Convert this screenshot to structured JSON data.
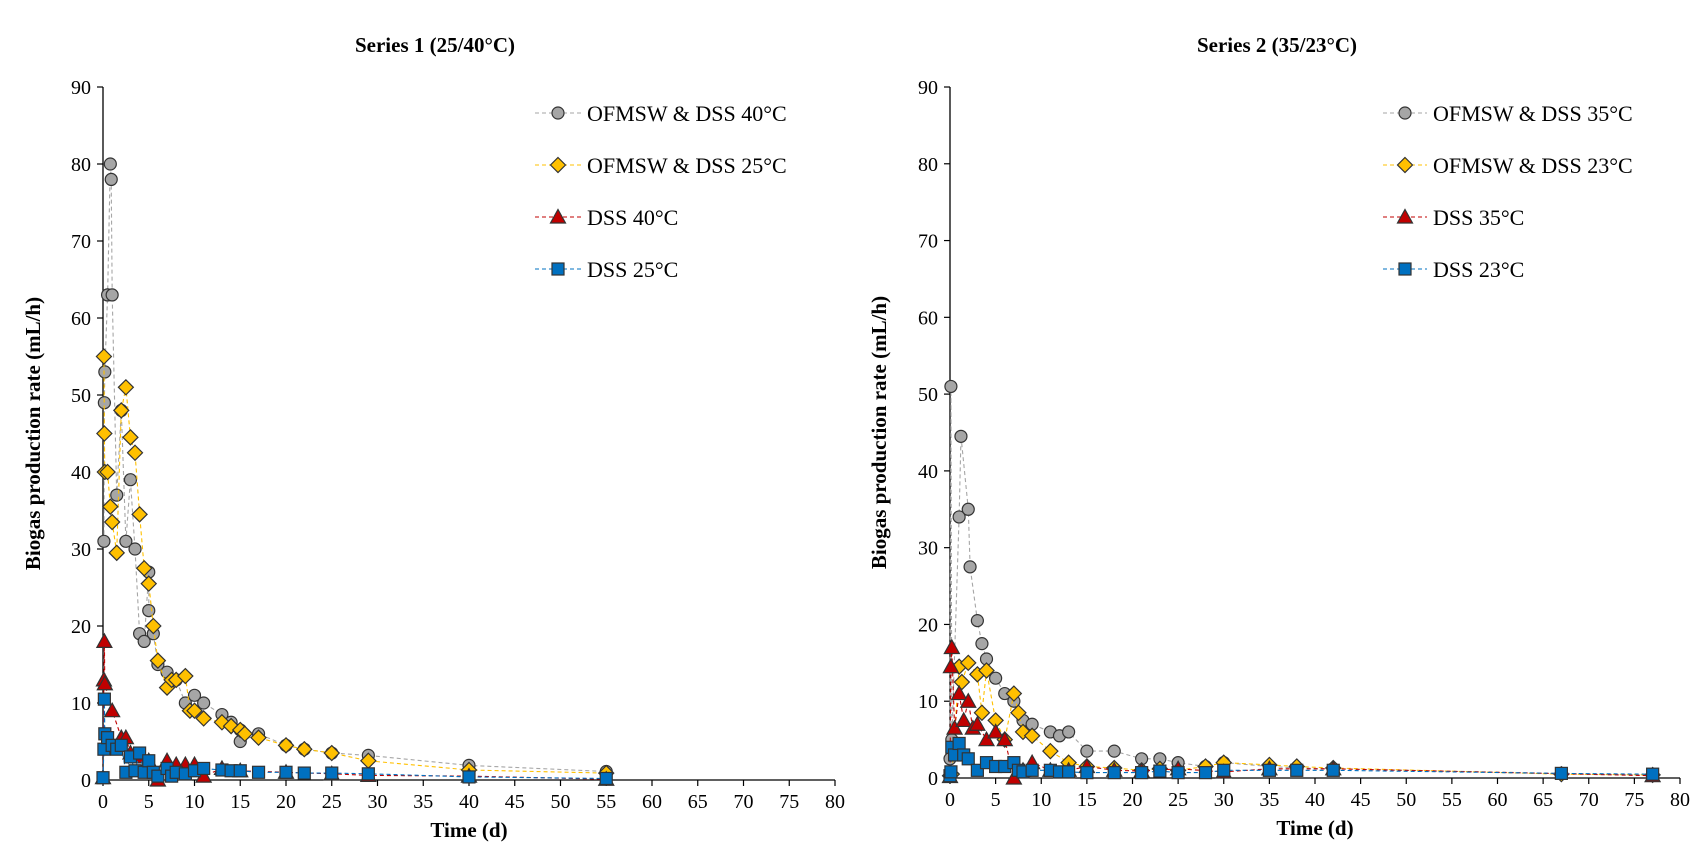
{
  "chart_data": [
    {
      "type": "scatter",
      "title": "Series 1 (25/40°C)",
      "xlabel": "Time (d)",
      "ylabel": "Biogas production rate (mL/h)",
      "xlim": [
        0,
        80
      ],
      "ylim": [
        0,
        90
      ],
      "xticks": [
        "0",
        "5",
        "10",
        "15",
        "20",
        "25",
        "30",
        "35",
        "40",
        "45",
        "50",
        "55",
        "60",
        "65",
        "70",
        "75",
        "80"
      ],
      "yticks": [
        "0",
        "10",
        "20",
        "30",
        "40",
        "50",
        "60",
        "70",
        "80",
        "90"
      ],
      "grid": false,
      "legend_position": "top-right",
      "series": [
        {
          "name": "OFMSW & DSS 40°C",
          "marker": "circle",
          "color": "#a6a6a6",
          "x": [
            0.1,
            0.15,
            0.2,
            0.5,
            0.8,
            0.9,
            1,
            1.5,
            2,
            2.5,
            3,
            3.5,
            4,
            4.5,
            5,
            5,
            5.5,
            6,
            7,
            8,
            9,
            10,
            11,
            13,
            14,
            15,
            15,
            17,
            20,
            22,
            25,
            29,
            40,
            55
          ],
          "y": [
            31,
            49,
            53,
            63,
            80,
            78,
            63,
            37,
            48,
            31,
            39,
            30,
            19,
            18,
            27,
            22,
            19,
            15,
            14,
            13,
            10,
            11,
            10,
            8.5,
            7.5,
            6.5,
            5,
            6,
            4.5,
            4,
            3.5,
            3.2,
            1.9,
            1.1
          ]
        },
        {
          "name": "OFMSW & DSS 25°C",
          "marker": "diamond",
          "color": "#ffc000",
          "x": [
            0.1,
            0.15,
            0.2,
            0.5,
            0.8,
            1,
            1.5,
            2,
            2.5,
            3,
            3.5,
            4,
            4.5,
            5,
            5.5,
            6,
            7,
            7.5,
            8,
            9,
            9.5,
            10,
            11,
            13,
            14,
            15,
            15.5,
            17,
            20,
            22,
            25,
            29,
            40,
            55
          ],
          "y": [
            55,
            45,
            40,
            40,
            35.5,
            33.5,
            29.5,
            48,
            51,
            44.5,
            42.5,
            34.5,
            27.5,
            25.5,
            20,
            15.5,
            12,
            13,
            13,
            13.5,
            9,
            9,
            8,
            7.5,
            7,
            6.5,
            6,
            5.5,
            4.5,
            4,
            3.5,
            2.5,
            1.3,
            0.9
          ]
        },
        {
          "name": "DSS 40°C",
          "marker": "triangle",
          "color": "#c00000",
          "x": [
            0,
            0.1,
            0.15,
            0.2,
            1,
            2,
            2.5,
            3,
            4,
            5,
            6,
            7,
            8,
            9,
            10,
            11,
            13,
            15,
            20,
            25,
            29,
            40,
            55
          ],
          "y": [
            0.3,
            13,
            18,
            12.5,
            9,
            5.5,
            5.5,
            3.5,
            3,
            2.5,
            0,
            2.5,
            2,
            2,
            2,
            0.5,
            1.5,
            1.2,
            1,
            0.8,
            0.6,
            0.5,
            0.1
          ]
        },
        {
          "name": "DSS 25°C",
          "marker": "square",
          "color": "#0070c0",
          "x": [
            0,
            0.1,
            0.15,
            0.2,
            0.5,
            1,
            1.5,
            2,
            2.5,
            3,
            3.5,
            4,
            4.5,
            5,
            5.5,
            6,
            7,
            7.5,
            8,
            9,
            10,
            11,
            13,
            14,
            15,
            17,
            20,
            22,
            25,
            29,
            40,
            55
          ],
          "y": [
            0.3,
            4,
            10.5,
            6,
            5.5,
            4.5,
            4,
            4.5,
            1,
            3,
            1.2,
            3.5,
            1,
            2.5,
            1,
            0.5,
            1.5,
            0.5,
            1,
            0.8,
            1.2,
            1.5,
            1.3,
            1.2,
            1.2,
            1,
            1,
            0.9,
            0.9,
            0.8,
            0.4,
            0.2
          ]
        }
      ]
    },
    {
      "type": "scatter",
      "title": "Series 2 (35/23°C)",
      "xlabel": "Time (d)",
      "ylabel": "Biogas production rate (mL/h)",
      "xlim": [
        0,
        80
      ],
      "ylim": [
        0,
        90
      ],
      "xticks": [
        "0",
        "5",
        "10",
        "15",
        "20",
        "25",
        "30",
        "35",
        "40",
        "45",
        "50",
        "55",
        "60",
        "65",
        "70",
        "75",
        "80"
      ],
      "yticks": [
        "0",
        "10",
        "20",
        "30",
        "40",
        "50",
        "60",
        "70",
        "80",
        "90"
      ],
      "grid": false,
      "legend_position": "top-right",
      "series": [
        {
          "name": "OFMSW & DSS 35°C",
          "marker": "circle",
          "color": "#a6a6a6",
          "x": [
            0,
            0.1,
            0.2,
            1,
            1.2,
            2,
            2.2,
            3,
            3.5,
            4,
            5,
            6,
            7,
            8,
            9,
            11,
            12,
            13,
            15,
            18,
            21,
            23,
            25,
            28,
            30,
            35,
            38,
            42,
            67,
            77
          ],
          "y": [
            2.5,
            51,
            5,
            34,
            44.5,
            35,
            27.5,
            20.5,
            17.5,
            15.5,
            13,
            11,
            10,
            7.5,
            7,
            6,
            5.5,
            6,
            3.5,
            3.5,
            2.5,
            2.5,
            2,
            1.5,
            2,
            1.5,
            1.3,
            1.2,
            0.6,
            0.4
          ]
        },
        {
          "name": "OFMSW & DSS 23°C",
          "marker": "diamond",
          "color": "#ffc000",
          "x": [
            0,
            0.2,
            1,
            1.3,
            2,
            3,
            3.5,
            4,
            5,
            6,
            7,
            7.5,
            8,
            9,
            11,
            13,
            15,
            18,
            21,
            23,
            25,
            28,
            30,
            35,
            38,
            42,
            67,
            77
          ],
          "y": [
            0.3,
            0.5,
            14.5,
            12.5,
            15,
            13.5,
            8.5,
            14,
            7.5,
            5,
            11,
            8.5,
            6,
            5.5,
            3.5,
            2,
            1.5,
            1.3,
            1,
            1.2,
            1,
            1.5,
            2,
            1.7,
            1.5,
            1.3,
            0.5,
            0.4
          ]
        },
        {
          "name": "DSS 35°C",
          "marker": "triangle",
          "color": "#c00000",
          "x": [
            0,
            0.1,
            0.2,
            0.5,
            1,
            1.5,
            2,
            2.5,
            3,
            4,
            5,
            6,
            7,
            8,
            9,
            11,
            13,
            15,
            18,
            21,
            25,
            30,
            35,
            42,
            77
          ],
          "y": [
            0.2,
            14.5,
            17,
            6.5,
            11,
            7.5,
            10,
            6.5,
            7,
            5,
            6,
            5,
            0,
            1,
            2,
            1,
            1,
            1.5,
            1,
            0.9,
            1.2,
            0.8,
            1.2,
            1.2,
            0.3
          ]
        },
        {
          "name": "DSS 23°C",
          "marker": "square",
          "color": "#0070c0",
          "x": [
            0,
            0.1,
            0.2,
            0.5,
            1,
            1.5,
            2,
            3,
            4,
            5,
            6,
            7,
            7.5,
            8,
            9,
            11,
            12,
            13,
            15,
            18,
            21,
            23,
            25,
            28,
            30,
            35,
            38,
            42,
            67,
            77
          ],
          "y": [
            0.3,
            0.8,
            4,
            3,
            4.5,
            3,
            2.5,
            1,
            2,
            1.5,
            1.5,
            2,
            1,
            0.8,
            1,
            1,
            0.8,
            0.8,
            0.7,
            0.7,
            0.7,
            0.9,
            0.7,
            0.7,
            1,
            1,
            1,
            1,
            0.6,
            0.5
          ]
        }
      ]
    }
  ]
}
